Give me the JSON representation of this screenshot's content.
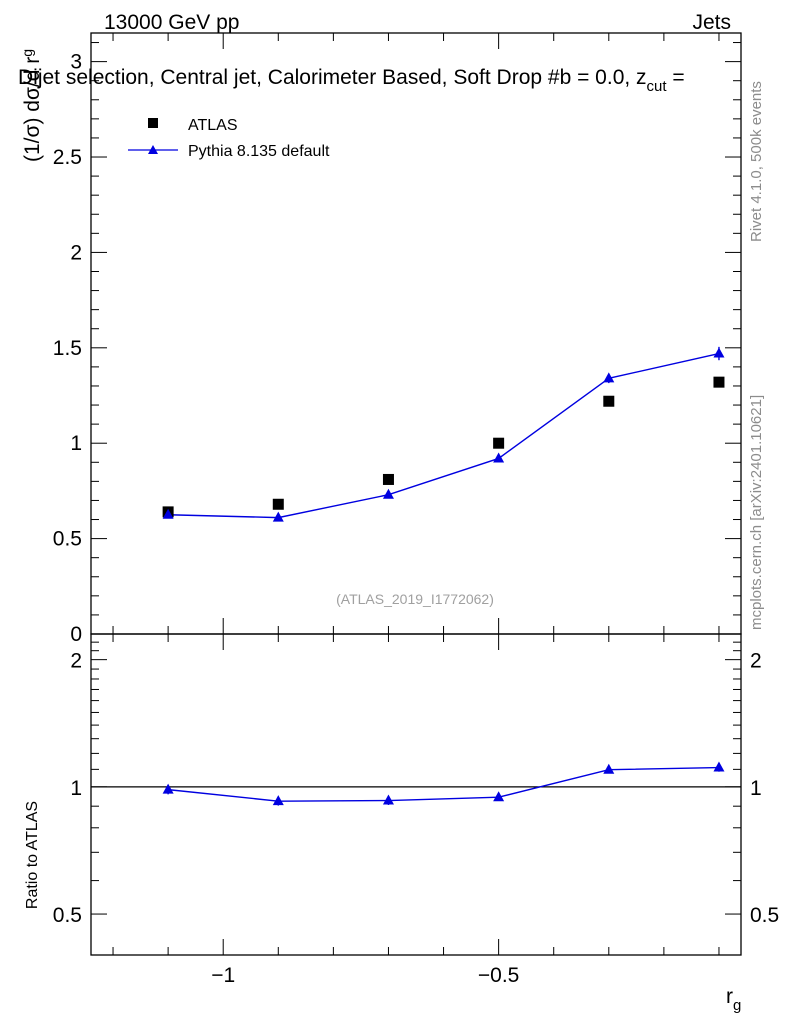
{
  "header": {
    "left": "13000 GeV pp",
    "right": "Jets",
    "title": "Dijet selection, Central jet, Calorimeter Based, Soft Drop #b = 0.0, z",
    "title_sub": "cut",
    "title_tail": " ="
  },
  "side_labels": {
    "rivet": "Rivet 4.1.0,  500k events",
    "mcplots": "mcplots.cern.ch [arXiv:2401.10621]"
  },
  "watermark": "(ATLAS_2019_I1772062)",
  "legend": {
    "data": "ATLAS",
    "mc": "Pythia 8.135 default"
  },
  "colors": {
    "mc": "#0000e0",
    "data": "#000000",
    "side": "#8c8c8c"
  },
  "chart_data": [
    {
      "type": "scatter",
      "panel": "main",
      "ylabel": "(1/σ) dσ/d r",
      "ylabel_sub": "g",
      "xlim": [
        -1.24,
        -0.06
      ],
      "ylim": [
        0,
        3.15
      ],
      "yticks": [
        0,
        0.5,
        1,
        1.5,
        2,
        2.5,
        3
      ],
      "ytick_labels": [
        "0",
        "0.5",
        "1",
        "1.5",
        "2",
        "2.5",
        "3"
      ],
      "series": [
        {
          "name": "ATLAS",
          "marker": "square",
          "x": [
            -1.1,
            -0.9,
            -0.7,
            -0.5,
            -0.3,
            -0.1
          ],
          "values": [
            0.64,
            0.68,
            0.81,
            1.0,
            1.22,
            1.32
          ]
        },
        {
          "name": "Pythia 8.135 default",
          "marker": "triangle",
          "line": true,
          "x": [
            -1.1,
            -0.9,
            -0.7,
            -0.5,
            -0.3,
            -0.1
          ],
          "values": [
            0.625,
            0.61,
            0.73,
            0.92,
            1.34,
            1.47
          ],
          "errors": [
            0.01,
            0.01,
            0.015,
            0.02,
            0.025,
            0.035
          ]
        }
      ]
    },
    {
      "type": "line",
      "panel": "ratio",
      "ylabel": "Ratio to ATLAS",
      "xlabel": "r",
      "xlabel_sub": "g",
      "xlim": [
        -1.24,
        -0.06
      ],
      "ylim": [
        0.4,
        2.3
      ],
      "xticks": [
        -1,
        -0.5
      ],
      "xtick_labels": [
        "−1",
        "−0.5"
      ],
      "yticks": [
        0.5,
        1,
        2
      ],
      "ytick_labels": [
        "0.5",
        "1",
        "2"
      ],
      "reference": 1,
      "series": [
        {
          "name": "Pythia 8.135 default / ATLAS",
          "x": [
            -1.1,
            -0.9,
            -0.7,
            -0.5,
            -0.3,
            -0.1
          ],
          "values": [
            0.985,
            0.925,
            0.928,
            0.945,
            1.098,
            1.111
          ],
          "errors": [
            0.025,
            0.022,
            0.022,
            0.018,
            0.018,
            0.025
          ]
        }
      ]
    }
  ]
}
